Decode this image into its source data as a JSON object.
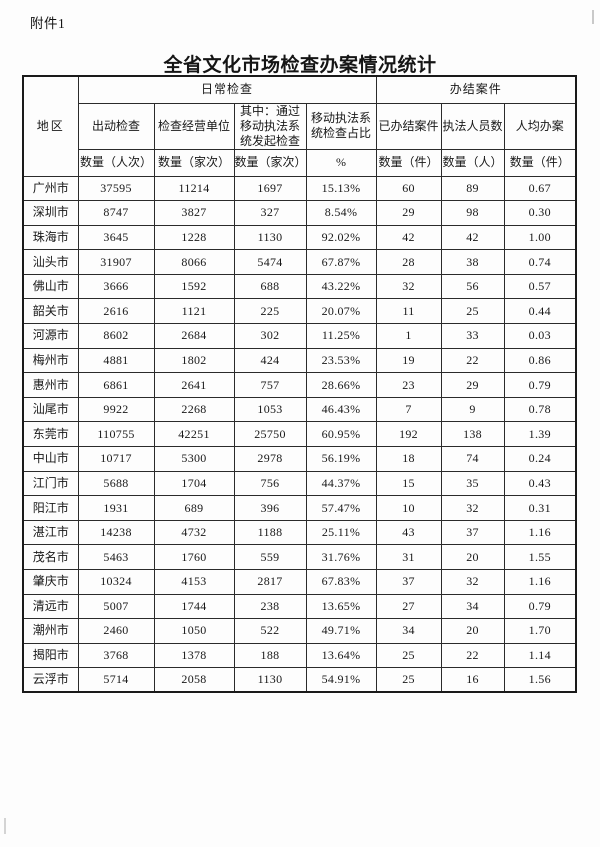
{
  "page": {
    "attachment_label": "附件1",
    "title": "全省文化市场检查办案情况统计"
  },
  "table": {
    "region_header": "地区",
    "groups": [
      {
        "label": "日常检查"
      },
      {
        "label": "办结案件"
      }
    ],
    "columns": [
      {
        "label": "出动检查",
        "unit": "数量（人次）"
      },
      {
        "label": "检查经营单位",
        "unit": "数量（家次）"
      },
      {
        "label": "其中：通过移动执法系统发起检查",
        "unit": "数量（家次）"
      },
      {
        "label": "移动执法系统检查占比",
        "unit": "%"
      },
      {
        "label": "已办结案件",
        "unit": "数量（件）"
      },
      {
        "label": "执法人员数",
        "unit": "数量（人）"
      },
      {
        "label": "人均办案",
        "unit": "数量（件）"
      }
    ],
    "rows": [
      {
        "region": "广州市",
        "values": [
          "37595",
          "11214",
          "1697",
          "15.13%",
          "60",
          "89",
          "0.67"
        ]
      },
      {
        "region": "深圳市",
        "values": [
          "8747",
          "3827",
          "327",
          "8.54%",
          "29",
          "98",
          "0.30"
        ]
      },
      {
        "region": "珠海市",
        "values": [
          "3645",
          "1228",
          "1130",
          "92.02%",
          "42",
          "42",
          "1.00"
        ]
      },
      {
        "region": "汕头市",
        "values": [
          "31907",
          "8066",
          "5474",
          "67.87%",
          "28",
          "38",
          "0.74"
        ]
      },
      {
        "region": "佛山市",
        "values": [
          "3666",
          "1592",
          "688",
          "43.22%",
          "32",
          "56",
          "0.57"
        ]
      },
      {
        "region": "韶关市",
        "values": [
          "2616",
          "1121",
          "225",
          "20.07%",
          "11",
          "25",
          "0.44"
        ]
      },
      {
        "region": "河源市",
        "values": [
          "8602",
          "2684",
          "302",
          "11.25%",
          "1",
          "33",
          "0.03"
        ]
      },
      {
        "region": "梅州市",
        "values": [
          "4881",
          "1802",
          "424",
          "23.53%",
          "19",
          "22",
          "0.86"
        ]
      },
      {
        "region": "惠州市",
        "values": [
          "6861",
          "2641",
          "757",
          "28.66%",
          "23",
          "29",
          "0.79"
        ]
      },
      {
        "region": "汕尾市",
        "values": [
          "9922",
          "2268",
          "1053",
          "46.43%",
          "7",
          "9",
          "0.78"
        ]
      },
      {
        "region": "东莞市",
        "values": [
          "110755",
          "42251",
          "25750",
          "60.95%",
          "192",
          "138",
          "1.39"
        ]
      },
      {
        "region": "中山市",
        "values": [
          "10717",
          "5300",
          "2978",
          "56.19%",
          "18",
          "74",
          "0.24"
        ]
      },
      {
        "region": "江门市",
        "values": [
          "5688",
          "1704",
          "756",
          "44.37%",
          "15",
          "35",
          "0.43"
        ]
      },
      {
        "region": "阳江市",
        "values": [
          "1931",
          "689",
          "396",
          "57.47%",
          "10",
          "32",
          "0.31"
        ]
      },
      {
        "region": "湛江市",
        "values": [
          "14238",
          "4732",
          "1188",
          "25.11%",
          "43",
          "37",
          "1.16"
        ]
      },
      {
        "region": "茂名市",
        "values": [
          "5463",
          "1760",
          "559",
          "31.76%",
          "31",
          "20",
          "1.55"
        ]
      },
      {
        "region": "肇庆市",
        "values": [
          "10324",
          "4153",
          "2817",
          "67.83%",
          "37",
          "32",
          "1.16"
        ]
      },
      {
        "region": "清远市",
        "values": [
          "5007",
          "1744",
          "238",
          "13.65%",
          "27",
          "34",
          "0.79"
        ]
      },
      {
        "region": "潮州市",
        "values": [
          "2460",
          "1050",
          "522",
          "49.71%",
          "34",
          "20",
          "1.70"
        ]
      },
      {
        "region": "揭阳市",
        "values": [
          "3768",
          "1378",
          "188",
          "13.64%",
          "25",
          "22",
          "1.14"
        ]
      },
      {
        "region": "云浮市",
        "values": [
          "5714",
          "2058",
          "1130",
          "54.91%",
          "25",
          "16",
          "1.56"
        ]
      }
    ]
  }
}
